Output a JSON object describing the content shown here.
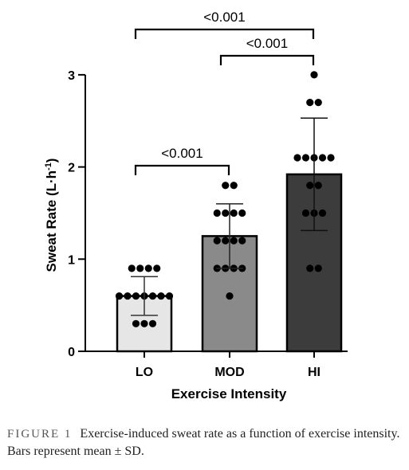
{
  "chart_data": {
    "type": "bar",
    "xlabel": "Exercise Intensity",
    "ylabel": "Sweat Rate (L·h",
    "ylabel_sup": "-1",
    "ylabel_close": ")",
    "ylim": [
      0,
      3
    ],
    "yticks": [
      0,
      1,
      2,
      3
    ],
    "categories": [
      "LO",
      "MOD",
      "HI"
    ],
    "means": [
      0.6,
      1.25,
      1.92
    ],
    "sd": [
      0.21,
      0.35,
      0.61
    ],
    "bar_colors": [
      "#e6e6e6",
      "#8a8a8a",
      "#3c3c3c"
    ],
    "points": [
      [
        0.9,
        0.9,
        0.9,
        0.9,
        0.6,
        0.6,
        0.6,
        0.6,
        0.6,
        0.6,
        0.6,
        0.3,
        0.3,
        0.3
      ],
      [
        1.8,
        1.8,
        1.5,
        1.5,
        1.5,
        1.5,
        1.2,
        1.2,
        1.2,
        1.2,
        0.9,
        0.9,
        0.9,
        0.9,
        0.6
      ],
      [
        3.0,
        2.7,
        2.7,
        2.1,
        2.1,
        2.1,
        2.1,
        2.1,
        1.8,
        1.8,
        1.5,
        1.5,
        1.5,
        0.9,
        0.9
      ]
    ],
    "comparisons": [
      {
        "from": 0,
        "to": 1,
        "label": "<0.001"
      },
      {
        "from": 1,
        "to": 2,
        "label": "<0.001"
      },
      {
        "from": 0,
        "to": 2,
        "label": "<0.001"
      }
    ]
  },
  "caption": {
    "label": "FIGURE",
    "number": "1",
    "text": "Exercise-induced sweat rate as a function of exercise intensity. Bars represent mean ± SD."
  }
}
